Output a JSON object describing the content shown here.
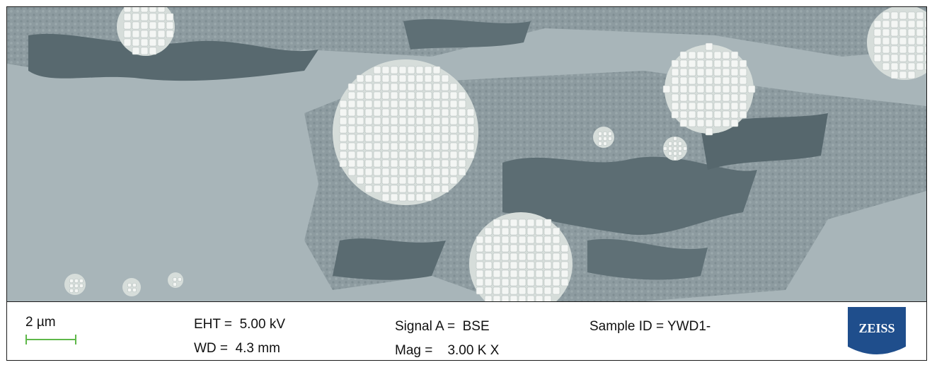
{
  "micrograph": {
    "description_icon": "sem-backscatter-micrograph"
  },
  "databar": {
    "scale_label": "2 µm",
    "eht": "EHT =  5.00 kV",
    "wd": "WD =  4.3 mm",
    "signal": "Signal A =  BSE",
    "mag": "Mag =    3.00 K X",
    "sample": "Sample ID = YWD1-",
    "logo_text": "ZEISS"
  },
  "colors": {
    "scalebar": "#5fb84a",
    "logo_blue": "#1f4e8c",
    "matrix_light": "#a8b5b9",
    "matrix_dark": "#56676d",
    "crystals": "#f4f6f4"
  }
}
